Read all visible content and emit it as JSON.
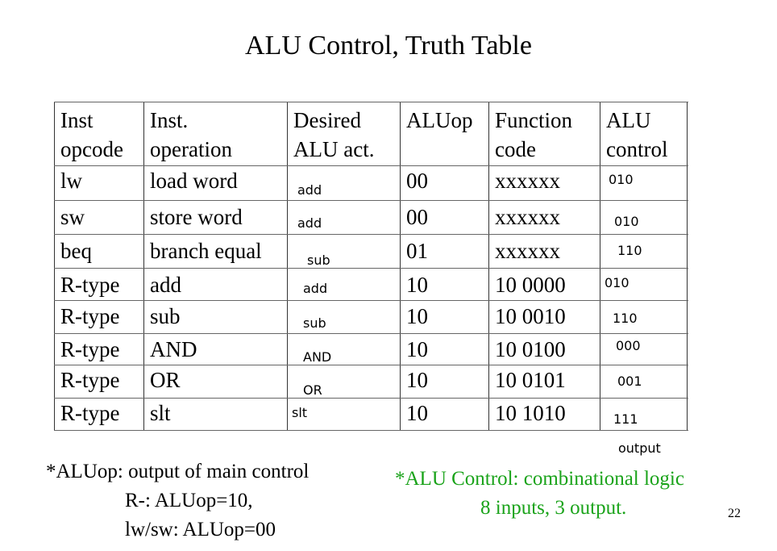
{
  "title": "ALU Control, Truth Table",
  "table": {
    "headers": [
      [
        "Inst",
        "opcode"
      ],
      [
        "Inst.",
        "operation"
      ],
      [
        "Desired",
        "ALU act."
      ],
      [
        "ALUop",
        ""
      ],
      [
        "Function",
        "code"
      ],
      [
        "ALU",
        "control"
      ]
    ],
    "rows": [
      {
        "opcode": "lw",
        "operation": "load word",
        "act": "add",
        "aluop": "00",
        "func": "xxxxxx",
        "control": "010"
      },
      {
        "opcode": "sw",
        "operation": "store word",
        "act": "add",
        "aluop": "00",
        "func": "xxxxxx",
        "control": "010"
      },
      {
        "opcode": "beq",
        "operation": "branch equal",
        "act": "sub",
        "aluop": "01",
        "func": "xxxxxx",
        "control": "110"
      },
      {
        "opcode": "R-type",
        "operation": "add",
        "act": "add",
        "aluop": "10",
        "func": "10 0000",
        "control": "010"
      },
      {
        "opcode": "R-type",
        "operation": "sub",
        "act": "sub",
        "aluop": "10",
        "func": "10 0010",
        "control": "110"
      },
      {
        "opcode": "R-type",
        "operation": "AND",
        "act": "AND",
        "aluop": "10",
        "func": "10 0100",
        "control": "000"
      },
      {
        "opcode": "R-type",
        "operation": "OR",
        "act": "OR",
        "aluop": "10",
        "func": "10 0101",
        "control": "001"
      },
      {
        "opcode": "R-type",
        "operation": "slt",
        "act": "slt",
        "aluop": "10",
        "func": "10 1010",
        "control": "111"
      }
    ],
    "output_label": "output"
  },
  "notes": {
    "aluop_line1": "*ALUop: output of main control",
    "aluop_line2": "R-: ALUop=10,",
    "aluop_line3": "lw/sw: ALUop=00",
    "control_line1": "*ALU Control: combinational logic",
    "control_line2": "8 inputs, 3 output."
  },
  "page_number": "22",
  "colors": {
    "note_green": "#1aa31a",
    "grid_line": "#333333"
  }
}
